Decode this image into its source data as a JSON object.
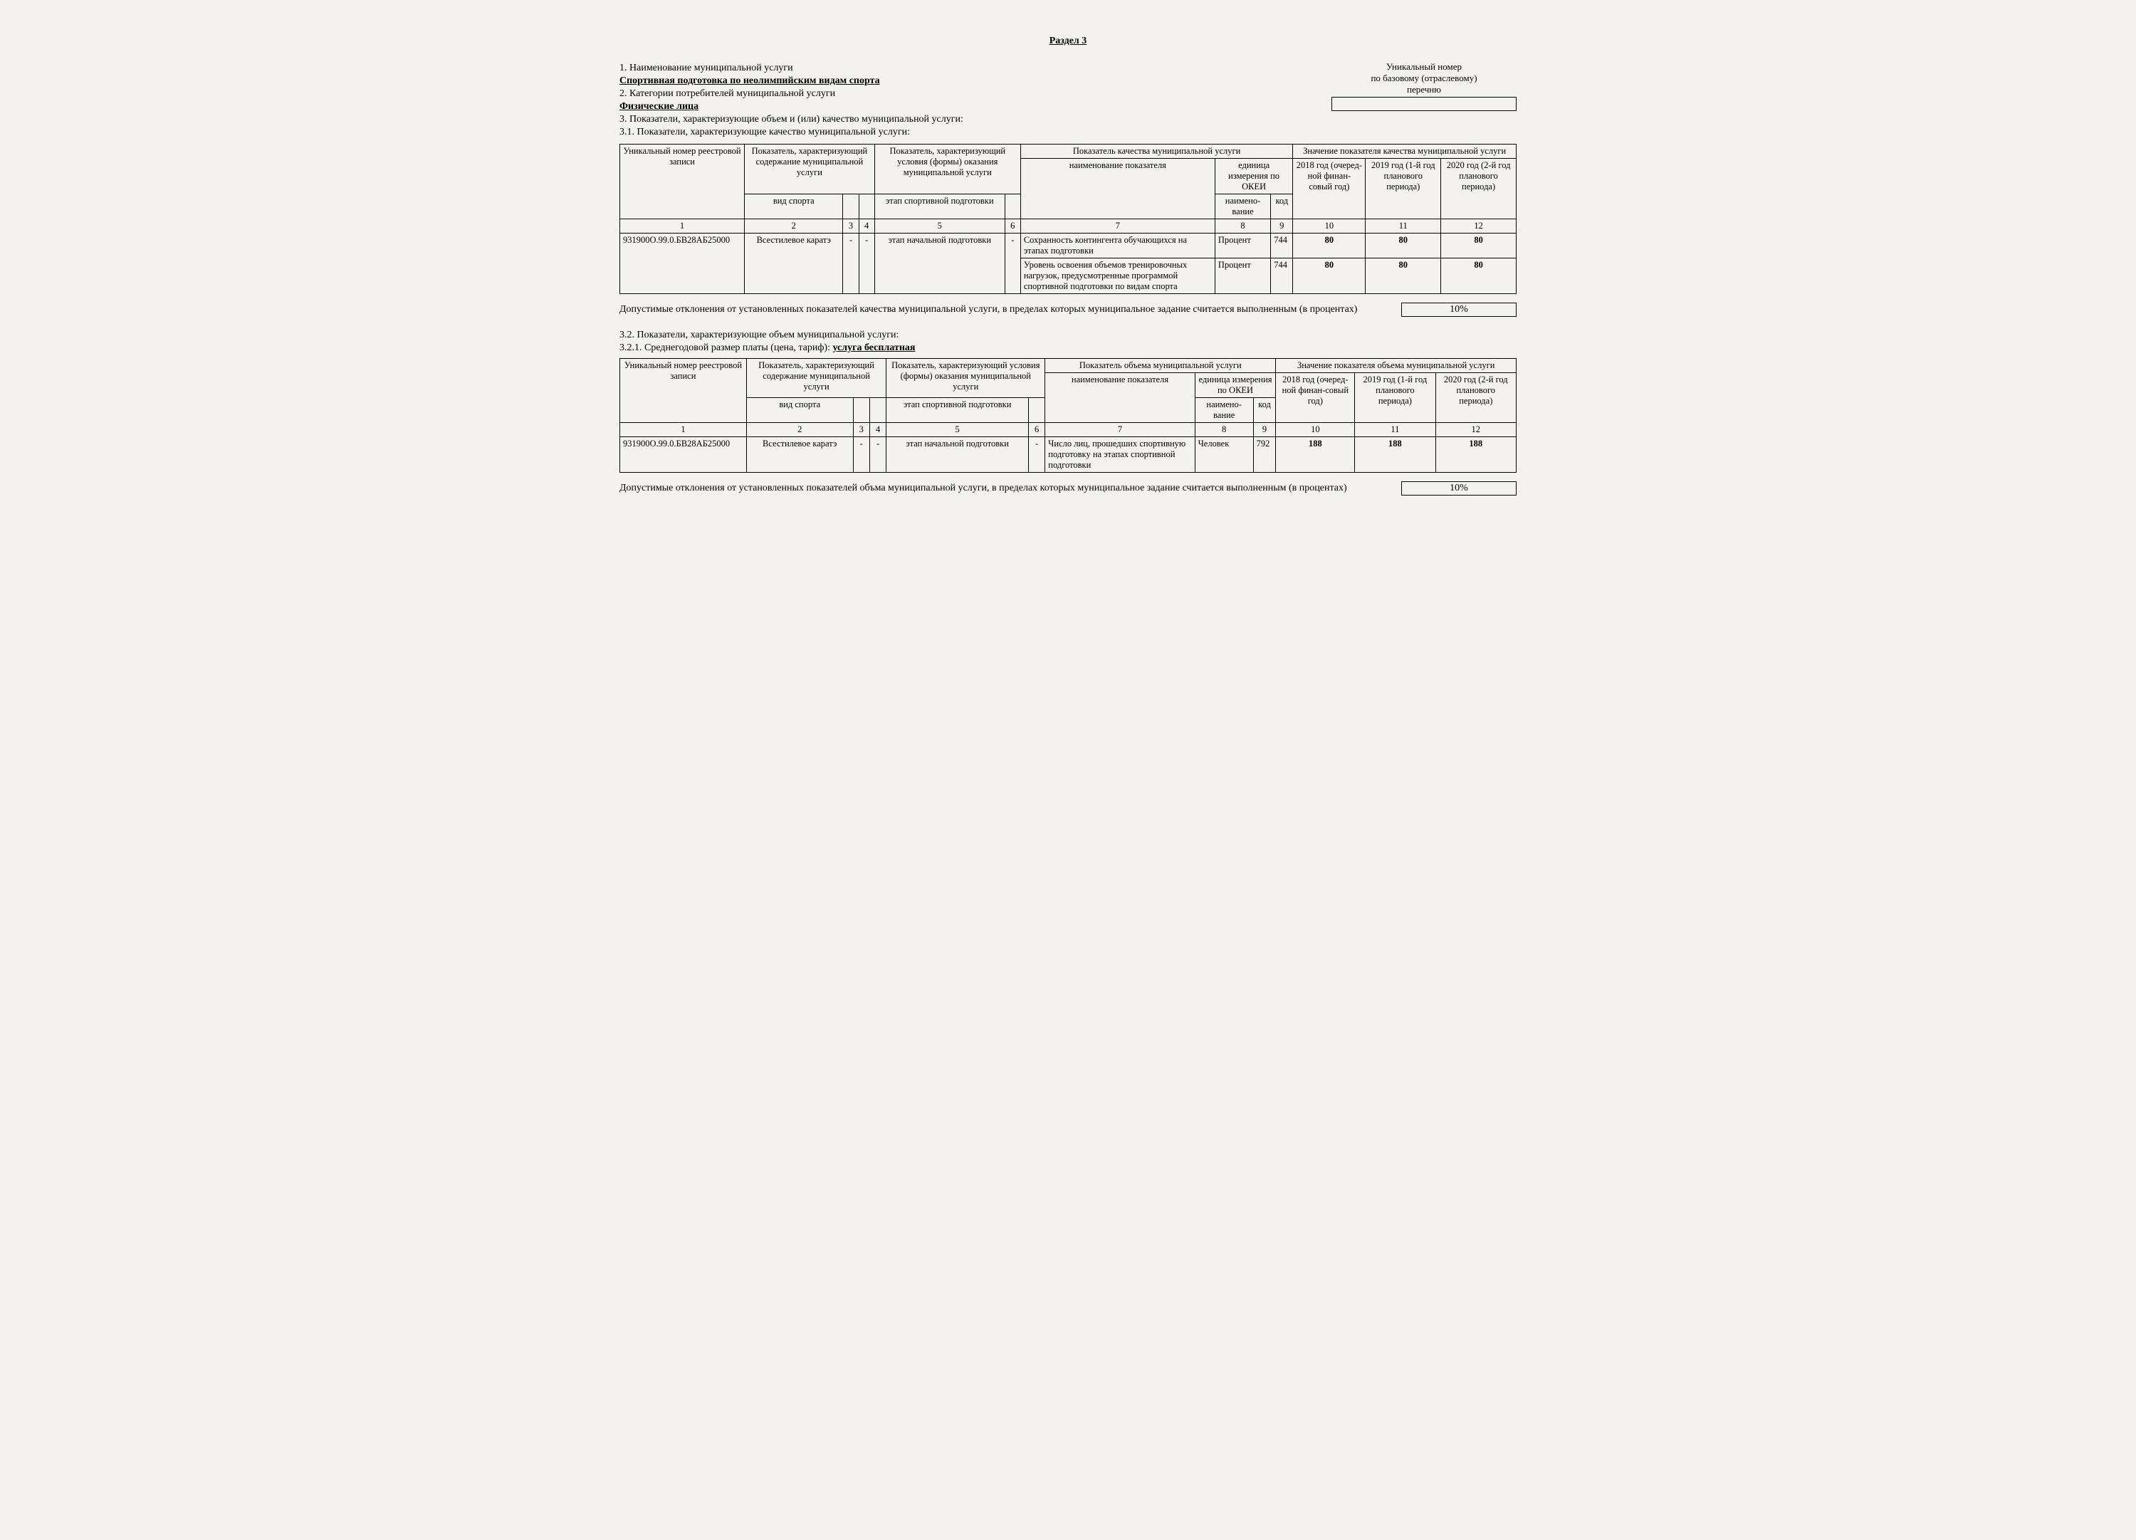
{
  "section_title": "Раздел 3",
  "header": {
    "l1": "1. Наименование муниципальной услуги",
    "l1u": "Спортивная подготовка по неолимпийским видам спорта",
    "l2": "2. Категории потребителей муниципальной услуги",
    "l2u": "Физические лица",
    "l3": "3. Показатели, характеризующие объем и (или) качество муниципальной услуги:",
    "l31": "3.1. Показатели, характеризующие качество муниципальной услуги:",
    "r1": "Уникальный номер",
    "r2": "по базовому (отраслевому)",
    "r3": "перечню"
  },
  "t1": {
    "h_uniq": "Уникальный номер реестровой записи",
    "h_p1": "Показатель, характеризующий содержание муниципальной услуги",
    "h_p2": "Показатель, характеризующий условия (формы) оказания муниципальной услуги",
    "h_qual": "Показатель качества муниципальной услуги",
    "h_val": "Значение показателя качества муниципальной услуги",
    "h_name": "наименование показателя",
    "h_unit": "единица измерения по ОКЕИ",
    "h_unit_name": "наимено-вание",
    "h_unit_code": "код",
    "h_y1": "2018 год (очеред-ной финан-совый год)",
    "h_y2": "2019 год (1-й год планового периода)",
    "h_y3": "2020 год (2-й год планового периода)",
    "h_sport": "вид спорта",
    "h_stage": "этап спортивной подготовки",
    "n1": "1",
    "n2": "2",
    "n3": "3",
    "n4": "4",
    "n5": "5",
    "n6": "6",
    "n7": "7",
    "n8": "8",
    "n9": "9",
    "n10": "10",
    "n11": "11",
    "n12": "12",
    "r1_id": "931900О.99.0.БВ28АБ25000",
    "r1_sport": "Всестилевое каратэ",
    "dash": "-",
    "r1_stage": "этап начальной подготовки",
    "r1_name1": "Сохранность контингента обучающихся на этапах подготовки",
    "r1_name2": "Уровень освоения объемов тренировочных нагрузок, предусмотренные программой спортивной подготовки по видам спорта",
    "unit": "Процент",
    "code": "744",
    "v1": "80",
    "v2": "80",
    "v3": "80",
    "w1": "80",
    "w2": "80",
    "w3": "80"
  },
  "note1": {
    "text": "Допустимые отклонения от установленных показателей качества муниципальной услуги, в пределах которых муниципальное задание считается выполненным (в процентах)",
    "val": "10%"
  },
  "mid": {
    "l32": "3.2. Показатели, характеризующие объем муниципальной услуги:",
    "l321a": "3.2.1. Среднегодовой размер платы (цена, тариф): ",
    "l321b": "услуга бесплатная"
  },
  "t2": {
    "h_val": "Значение показателя объема муниципальной услуги",
    "h_qual": "Показатель объема муниципальной услуги",
    "r1_name": "Число лиц, прошедших спортивную подготовку на этапах спортивной подготовки",
    "unit": "Человек",
    "code": "792",
    "v1": "188",
    "v2": "188",
    "v3": "188"
  },
  "note2": {
    "text": "Допустимые отклонения от установленных показателей объма муниципальной услуги, в пределах которых муниципальное задание считается выполненным (в процентах)",
    "val": "10%"
  }
}
